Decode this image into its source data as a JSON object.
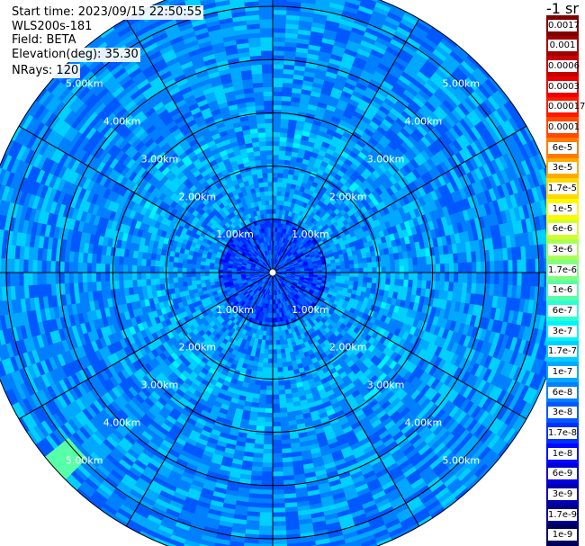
{
  "info": {
    "start_time": "Start time: 2023/09/15 22:50:55",
    "instrument": "WLS200s-181",
    "field": "Field: BETA",
    "elevation": "Elevation(deg): 35.30",
    "nrays": "NRays: 120"
  },
  "colorbar": {
    "unit": "-1 sr",
    "levels": [
      {
        "label": "0.0017",
        "color": "#800000"
      },
      {
        "label": "0.001",
        "color": "#a00000"
      },
      {
        "label": "0.0006",
        "color": "#c40000"
      },
      {
        "label": "0.0003",
        "color": "#ea0000"
      },
      {
        "label": "0.00017",
        "color": "#ff1800"
      },
      {
        "label": "0.0001",
        "color": "#ff4800"
      },
      {
        "label": "6e-5",
        "color": "#ff7a00"
      },
      {
        "label": "3e-5",
        "color": "#ffaa00"
      },
      {
        "label": "1.7e-5",
        "color": "#ffd800"
      },
      {
        "label": "1e-5",
        "color": "#fafa00"
      },
      {
        "label": "6e-6",
        "color": "#d2ff2c"
      },
      {
        "label": "3e-6",
        "color": "#a8ff56"
      },
      {
        "label": "1.7e-6",
        "color": "#80ff80"
      },
      {
        "label": "1e-6",
        "color": "#56ffa8"
      },
      {
        "label": "6e-7",
        "color": "#2cffd2"
      },
      {
        "label": "3e-7",
        "color": "#00f4fa"
      },
      {
        "label": "1.7e-7",
        "color": "#00d0ff"
      },
      {
        "label": "1e-7",
        "color": "#00a8ff"
      },
      {
        "label": "6e-8",
        "color": "#0080ff"
      },
      {
        "label": "3e-8",
        "color": "#0058ff"
      },
      {
        "label": "1.7e-8",
        "color": "#0030ff"
      },
      {
        "label": "1e-8",
        "color": "#0008ff"
      },
      {
        "label": "6e-9",
        "color": "#0000d8"
      },
      {
        "label": "3e-9",
        "color": "#0000b0"
      },
      {
        "label": "1.7e-9",
        "color": "#000088"
      },
      {
        "label": "1e-9",
        "color": "#00005a"
      }
    ]
  },
  "chart_data": {
    "type": "heatmap",
    "projection": "polar (PPI scan)",
    "field": "BETA",
    "units": "-1 sr",
    "color_scale": "log",
    "range_rings_km": [
      1,
      2,
      3,
      4,
      5
    ],
    "ring_labels": [
      "1.00km",
      "2.00km",
      "3.00km",
      "4.00km",
      "5.00km"
    ],
    "ring_label_directions": [
      "upper-left",
      "upper-right",
      "lower-left",
      "lower-right"
    ],
    "max_range_km": 5.5,
    "azimuth_gridlines_deg": [
      0,
      30,
      60,
      90,
      120,
      150,
      180,
      210,
      240,
      270,
      300,
      330
    ],
    "zones": [
      {
        "range_km": [
          0,
          1.0
        ],
        "beta": 2.5e-08
      },
      {
        "range_km": [
          1.0,
          2.0
        ],
        "beta": 8e-08
      },
      {
        "range_km": [
          2.0,
          3.0
        ],
        "beta": 9e-08
      },
      {
        "range_km": [
          3.0,
          5.5
        ],
        "beta": 7e-08
      }
    ],
    "features": [
      {
        "description": "slightly elevated values near outer edge",
        "azimuth_deg": 228,
        "range_km": 5.3,
        "beta": 1e-06
      }
    ]
  }
}
